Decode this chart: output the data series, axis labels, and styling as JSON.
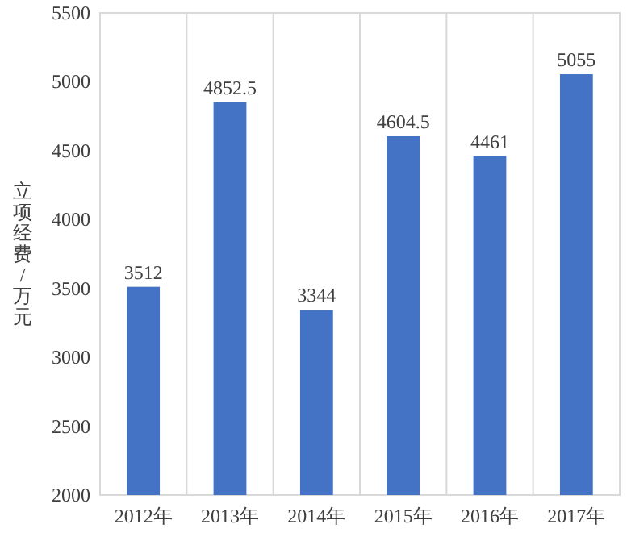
{
  "chart_data": {
    "type": "bar",
    "ylabel": "立项经费/万元",
    "categories": [
      "2012年",
      "2013年",
      "2014年",
      "2015年",
      "2016年",
      "2017年"
    ],
    "series": [
      {
        "color": "#4472c4",
        "values": [
          3512,
          4852.5,
          3344,
          4604.5,
          4461,
          5055
        ]
      }
    ],
    "ylim": [
      2000,
      5500
    ],
    "yticks": [
      2000,
      2500,
      3000,
      3500,
      4000,
      4500,
      5000,
      5500
    ],
    "grid": "x",
    "data_labels": true
  }
}
